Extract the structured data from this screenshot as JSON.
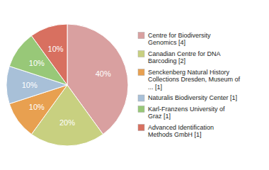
{
  "chart_data": {
    "type": "pie",
    "categories": [
      "Centre for Biodiversity\nGenomics [4]",
      "Canadian Centre for DNA\nBarcoding [2]",
      "Senckenberg Natural History\nCollections Dresden, Museum of\n... [1]",
      "Naturalis Biodiversity Center [1]",
      "Karl-Franzens University of\nGraz [1]",
      "Advanced Identification\nMethods GmbH [1]"
    ],
    "values": [
      40,
      20,
      10,
      10,
      10,
      10
    ],
    "value_labels": [
      "40%",
      "20%",
      "10%",
      "10%",
      "10%",
      "10%"
    ],
    "colors": [
      "#d9a0a0",
      "#c8d080",
      "#e8a050",
      "#a8c0d8",
      "#98c878",
      "#d87060"
    ],
    "data_labels": true,
    "legend": "right"
  }
}
